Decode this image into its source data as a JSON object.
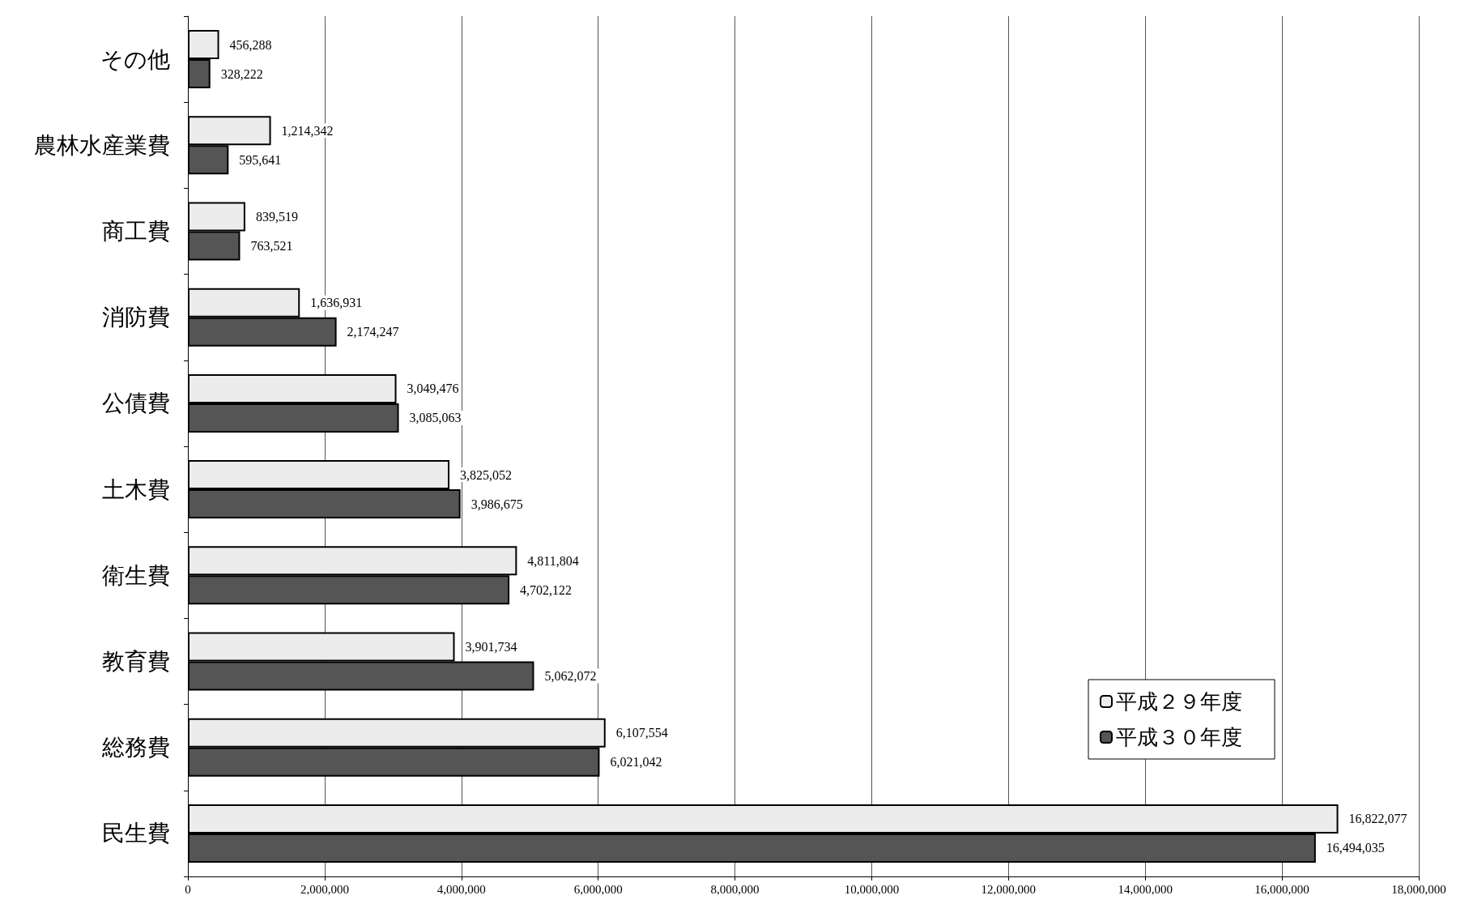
{
  "chart_data": {
    "type": "bar",
    "orientation": "horizontal",
    "categories": [
      "その他",
      "農林水産業費",
      "商工費",
      "消防費",
      "公債費",
      "土木費",
      "衛生費",
      "教育費",
      "総務費",
      "民生費"
    ],
    "series": [
      {
        "name": "平成２９年度",
        "color": "#ececec",
        "values": [
          456288,
          1214342,
          839519,
          1636931,
          3049476,
          3825052,
          4811804,
          3901734,
          6107554,
          16822077
        ],
        "value_labels": [
          "456,288",
          "1,214,342",
          "839,519",
          "1,636,931",
          "3,049,476",
          "3,825,052",
          "4,811,804",
          "3,901,734",
          "6,107,554",
          "16,822,077"
        ]
      },
      {
        "name": "平成３０年度",
        "color": "#555555",
        "values": [
          328222,
          595641,
          763521,
          2174247,
          3085063,
          3986675,
          4702122,
          5062072,
          6021042,
          16494035
        ],
        "value_labels": [
          "328,222",
          "595,641",
          "763,521",
          "2,174,247",
          "3,085,063",
          "3,986,675",
          "4,702,122",
          "5,062,072",
          "6,021,042",
          "16,494,035"
        ]
      }
    ],
    "xlim": [
      0,
      18000000
    ],
    "xticks": [
      0,
      {
        "value": 2000000,
        "label": "2,000,000"
      },
      {
        "value": 4000000,
        "label": "4,000,000"
      },
      {
        "value": 6000000,
        "label": "6,000,000"
      },
      {
        "value": 8000000,
        "label": "8,000,000"
      },
      {
        "value": 10000000,
        "label": "10,000,000"
      },
      {
        "value": 12000000,
        "label": "12,000,000"
      },
      {
        "value": 14000000,
        "label": "14,000,000"
      },
      {
        "value": 16000000,
        "label": "16,000,000"
      },
      {
        "value": 18000000,
        "label": "18,000,000"
      }
    ],
    "grid": "x",
    "legend": "bottom right"
  }
}
